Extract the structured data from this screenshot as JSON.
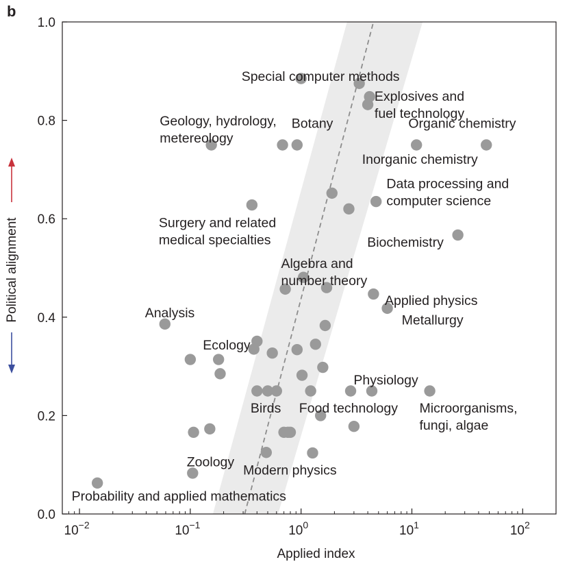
{
  "panel_label": "b",
  "chart_data": {
    "type": "scatter",
    "xlabel": "Applied index",
    "ylabel": "Political alignment",
    "xscale": "log",
    "xlim": [
      0.007,
      200
    ],
    "ylim": [
      0.0,
      1.0
    ],
    "x_ticks": [
      {
        "value": 0.01,
        "base": "10",
        "exp": "−2"
      },
      {
        "value": 0.1,
        "base": "10",
        "exp": "−1"
      },
      {
        "value": 1,
        "base": "10",
        "exp": "0"
      },
      {
        "value": 10,
        "base": "10",
        "exp": "1"
      },
      {
        "value": 100,
        "base": "10",
        "exp": "2"
      }
    ],
    "y_ticks": [
      {
        "value": 0.0,
        "label": "0.0"
      },
      {
        "value": 0.2,
        "label": "0.2"
      },
      {
        "value": 0.4,
        "label": "0.4"
      },
      {
        "value": 0.6,
        "label": "0.6"
      },
      {
        "value": 0.8,
        "label": "0.8"
      },
      {
        "value": 1.0,
        "label": "1.0"
      }
    ],
    "grid": false,
    "colors": {
      "points": "#9a9a9a",
      "fit_line": "#8c8c8c",
      "band": "#ebebeb",
      "up_arrow": "#c8323c",
      "down_arrow": "#3c4f9e"
    },
    "fit_line": {
      "style": "dashed",
      "from": [
        0.31,
        0.0
      ],
      "to": [
        4.5,
        1.0
      ]
    },
    "confidence_band": {
      "bottom": [
        0.16,
        0.62
      ],
      "top": [
        2.6,
        12.5
      ]
    },
    "points": [
      {
        "x": 0.0145,
        "y": 0.063
      },
      {
        "x": 0.059,
        "y": 0.386
      },
      {
        "x": 0.1,
        "y": 0.314
      },
      {
        "x": 0.105,
        "y": 0.083
      },
      {
        "x": 0.107,
        "y": 0.166
      },
      {
        "x": 0.15,
        "y": 0.173
      },
      {
        "x": 0.155,
        "y": 0.75
      },
      {
        "x": 0.18,
        "y": 0.314
      },
      {
        "x": 0.186,
        "y": 0.285
      },
      {
        "x": 0.36,
        "y": 0.628
      },
      {
        "x": 0.375,
        "y": 0.335
      },
      {
        "x": 0.4,
        "y": 0.351
      },
      {
        "x": 0.4,
        "y": 0.25
      },
      {
        "x": 0.485,
        "y": 0.125
      },
      {
        "x": 0.5,
        "y": 0.25
      },
      {
        "x": 0.55,
        "y": 0.327
      },
      {
        "x": 0.6,
        "y": 0.25
      },
      {
        "x": 0.68,
        "y": 0.75
      },
      {
        "x": 0.7,
        "y": 0.166
      },
      {
        "x": 0.72,
        "y": 0.457
      },
      {
        "x": 0.76,
        "y": 0.166
      },
      {
        "x": 0.8,
        "y": 0.166
      },
      {
        "x": 0.92,
        "y": 0.75
      },
      {
        "x": 0.92,
        "y": 0.334
      },
      {
        "x": 1.0,
        "y": 0.885
      },
      {
        "x": 1.02,
        "y": 0.282
      },
      {
        "x": 1.05,
        "y": 0.481
      },
      {
        "x": 1.22,
        "y": 0.25
      },
      {
        "x": 1.27,
        "y": 0.124
      },
      {
        "x": 1.35,
        "y": 0.345
      },
      {
        "x": 1.5,
        "y": 0.2
      },
      {
        "x": 1.57,
        "y": 0.298
      },
      {
        "x": 1.65,
        "y": 0.383
      },
      {
        "x": 1.7,
        "y": 0.46
      },
      {
        "x": 1.9,
        "y": 0.652
      },
      {
        "x": 2.7,
        "y": 0.62
      },
      {
        "x": 2.8,
        "y": 0.25
      },
      {
        "x": 3.0,
        "y": 0.178
      },
      {
        "x": 3.35,
        "y": 0.875
      },
      {
        "x": 4.0,
        "y": 0.832
      },
      {
        "x": 4.15,
        "y": 0.848
      },
      {
        "x": 4.35,
        "y": 0.25
      },
      {
        "x": 4.5,
        "y": 0.447
      },
      {
        "x": 4.75,
        "y": 0.635
      },
      {
        "x": 6.0,
        "y": 0.418
      },
      {
        "x": 11.0,
        "y": 0.75
      },
      {
        "x": 14.5,
        "y": 0.25
      },
      {
        "x": 26.0,
        "y": 0.567
      },
      {
        "x": 47.0,
        "y": 0.75
      }
    ],
    "annotations": [
      {
        "lines": [
          "Special computer methods"
        ],
        "x": 0.29,
        "y": 0.88
      },
      {
        "lines": [
          "Explosives and",
          "fuel technology"
        ],
        "x": 4.6,
        "y": 0.84
      },
      {
        "lines": [
          "Geology, hydrology,",
          "metereology"
        ],
        "x": 0.053,
        "y": 0.79
      },
      {
        "lines": [
          "Botany"
        ],
        "x": 0.82,
        "y": 0.785
      },
      {
        "lines": [
          "Organic chemistry"
        ],
        "x": 9.3,
        "y": 0.785
      },
      {
        "lines": [
          "Inorganic chemistry"
        ],
        "x": 3.55,
        "y": 0.712
      },
      {
        "lines": [
          "Data processing and",
          "computer science"
        ],
        "x": 5.9,
        "y": 0.662
      },
      {
        "lines": [
          "Surgery and related",
          "medical specialties"
        ],
        "x": 0.052,
        "y": 0.583
      },
      {
        "lines": [
          "Biochemistry"
        ],
        "x": 3.95,
        "y": 0.543
      },
      {
        "lines": [
          "Algebra and",
          "number theory"
        ],
        "x": 0.66,
        "y": 0.5
      },
      {
        "lines": [
          "Applied physics"
        ],
        "x": 5.7,
        "y": 0.425
      },
      {
        "lines": [
          "Metallurgy"
        ],
        "x": 8.1,
        "y": 0.385
      },
      {
        "lines": [
          "Analysis"
        ],
        "x": 0.039,
        "y": 0.4
      },
      {
        "lines": [
          "Ecology"
        ],
        "x": 0.13,
        "y": 0.334
      },
      {
        "lines": [
          "Physiology"
        ],
        "x": 2.98,
        "y": 0.263
      },
      {
        "lines": [
          "Birds"
        ],
        "x": 0.35,
        "y": 0.206
      },
      {
        "lines": [
          "Food technology"
        ],
        "x": 0.96,
        "y": 0.206
      },
      {
        "lines": [
          "Microorganisms,",
          "fungi, algae"
        ],
        "x": 11.7,
        "y": 0.206
      },
      {
        "lines": [
          "Zoology"
        ],
        "x": 0.093,
        "y": 0.097
      },
      {
        "lines": [
          "Modern physics"
        ],
        "x": 0.3,
        "y": 0.08
      },
      {
        "lines": [
          "Probability and applied mathematics"
        ],
        "x": 0.0085,
        "y": 0.027
      }
    ]
  }
}
